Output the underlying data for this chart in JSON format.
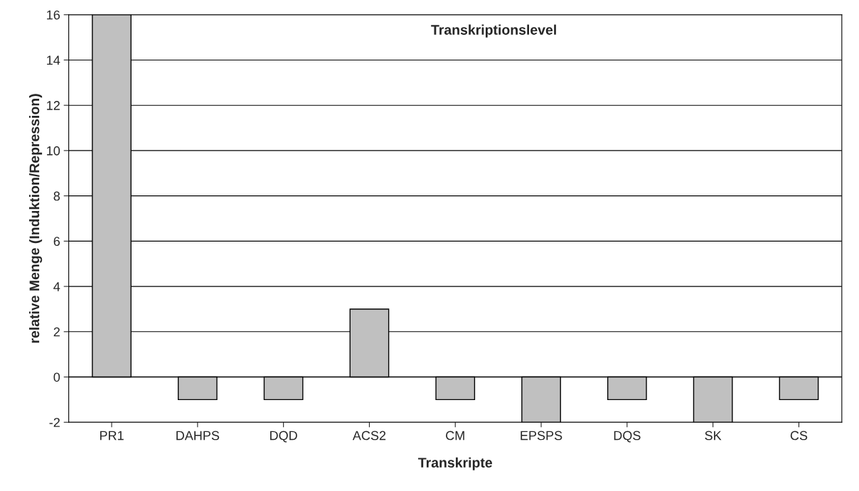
{
  "chart_data": {
    "type": "bar",
    "title": "Transkriptionslevel",
    "xlabel": "Transkripte",
    "ylabel": "relative Menge (Induktion/Repression)",
    "categories": [
      "PR1",
      "DAHPS",
      "DQD",
      "ACS2",
      "CM",
      "EPSPS",
      "DQS",
      "SK",
      "CS"
    ],
    "values": [
      16,
      -1,
      -1,
      3,
      -1,
      -2,
      -1,
      -2,
      -1
    ],
    "color": "#c0c0c0",
    "ylim": [
      -2,
      16
    ],
    "yticks": [
      -2,
      0,
      2,
      4,
      6,
      8,
      10,
      12,
      14,
      16
    ],
    "grid": "y"
  }
}
